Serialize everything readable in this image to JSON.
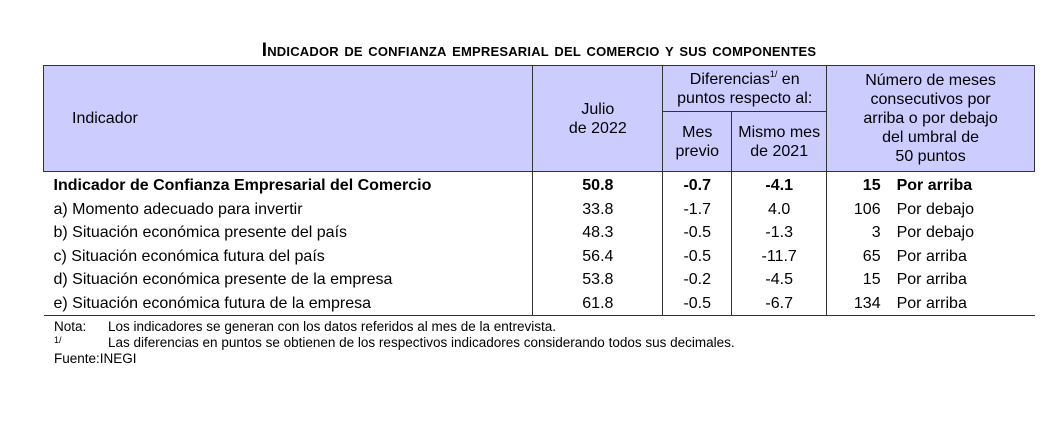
{
  "title": "Indicador de confianza empresarial del comercio y sus componentes",
  "headers": {
    "indicador": "Indicador",
    "julio_line1": "Julio",
    "julio_line2": "de 2022",
    "diferencias_line1": "Diferencias",
    "diferencias_sup": "1/",
    "diferencias_line1_rest": " en",
    "diferencias_line2": "puntos respecto al:",
    "mes_previo_line1": "Mes",
    "mes_previo_line2": "previo",
    "mismo_mes_line1": "Mismo mes",
    "mismo_mes_line2": "de 2021",
    "numero_line1": "Número de meses",
    "numero_line2": "consecutivos por",
    "numero_line3": "arriba o por debajo",
    "numero_line4": "del umbral de",
    "numero_line5": "50 puntos"
  },
  "rows": [
    {
      "label": "Indicador de Confianza Empresarial del Comercio",
      "julio": "50.8",
      "mes_previo": "-0.7",
      "mismo_mes": "-4.1",
      "meses": "15",
      "posicion": "Por arriba"
    },
    {
      "label": "a)  Momento adecuado para invertir",
      "julio": "33.8",
      "mes_previo": "-1.7",
      "mismo_mes": "4.0",
      "meses": "106",
      "posicion": "Por debajo"
    },
    {
      "label": "b)  Situación económica presente del país",
      "julio": "48.3",
      "mes_previo": "-0.5",
      "mismo_mes": "-1.3",
      "meses": "3",
      "posicion": "Por debajo"
    },
    {
      "label": "c)  Situación económica futura del país",
      "julio": "56.4",
      "mes_previo": "-0.5",
      "mismo_mes": "-11.7",
      "meses": "65",
      "posicion": "Por arriba"
    },
    {
      "label": "d)  Situación económica presente de la empresa",
      "julio": "53.8",
      "mes_previo": "-0.2",
      "mismo_mes": "-4.5",
      "meses": "15",
      "posicion": "Por arriba"
    },
    {
      "label": "e)  Situación económica futura de la empresa",
      "julio": "61.8",
      "mes_previo": "-0.5",
      "mismo_mes": "-6.7",
      "meses": "134",
      "posicion": "Por arriba"
    }
  ],
  "notes": {
    "nota_key": "Nota:",
    "nota_text": "Los indicadores se generan con los datos referidos al mes de la entrevista.",
    "footnote_key": "1/",
    "footnote_text": "Las diferencias en puntos se obtienen de los respectivos indicadores considerando todos sus decimales.",
    "fuente_key": "Fuente:",
    "fuente_text": "INEGI"
  },
  "colors": {
    "header_bg": "#ccccff",
    "border": "#333333"
  }
}
